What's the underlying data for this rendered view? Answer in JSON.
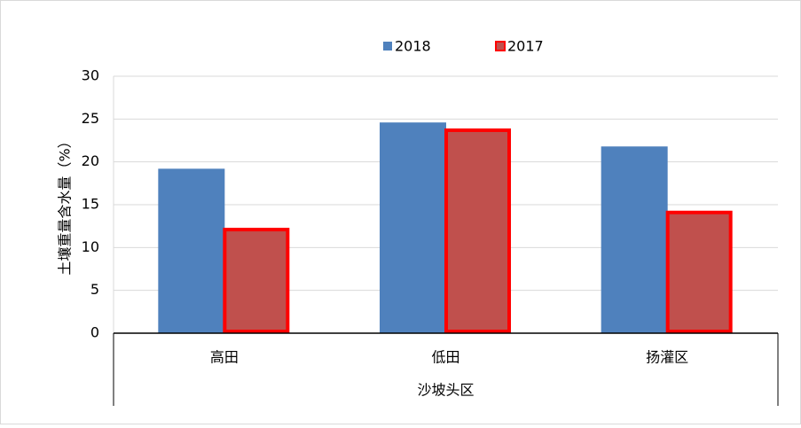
{
  "chart_data": {
    "type": "bar",
    "y_label": "土壤重量含水量（%）",
    "categories": [
      "高田",
      "低田",
      "扬灌区"
    ],
    "group_label": "沙坡头区",
    "series": [
      {
        "name": "2018",
        "color": "#4f81bd",
        "values": [
          19.2,
          24.6,
          21.8
        ]
      },
      {
        "name": "2017",
        "color": "#c0504d",
        "edge_color": "#ff0000",
        "values": [
          12.3,
          23.9,
          14.3
        ]
      }
    ],
    "ylim": [
      0,
      30
    ],
    "yticks": [
      0,
      5,
      10,
      15,
      20,
      25,
      30
    ],
    "grid": true,
    "legend": "top"
  }
}
